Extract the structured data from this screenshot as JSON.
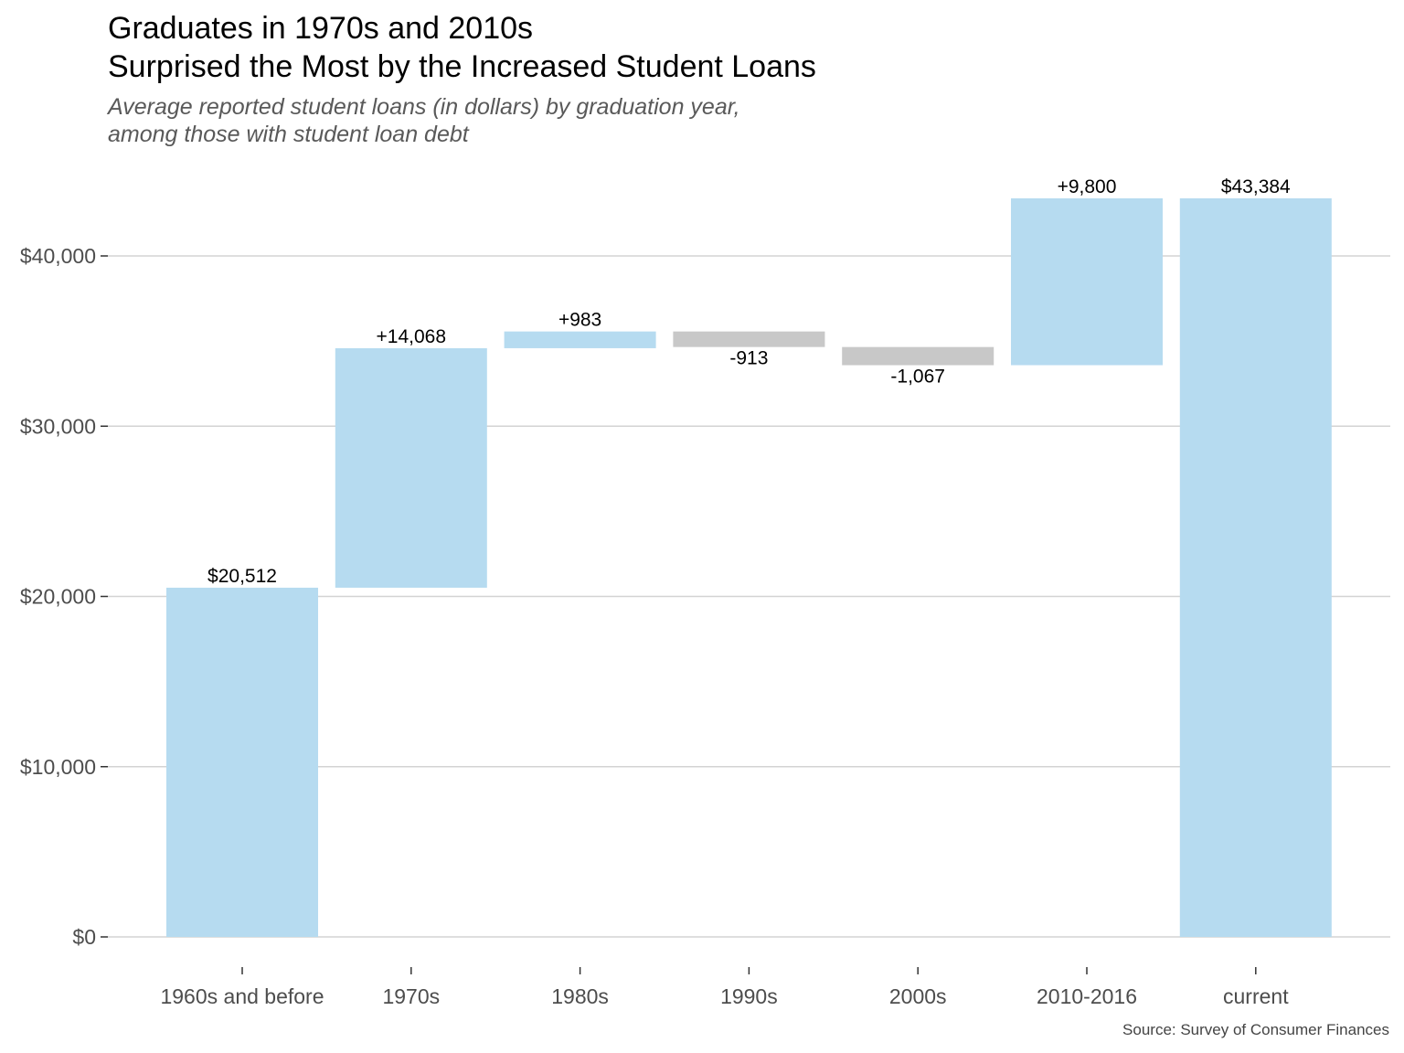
{
  "title": "Graduates in 1970s and 2010s\nSurprised the Most by the Increased Student Loans",
  "subtitle": "Average reported student loans (in dollars) by graduation year,\namong those with student loan debt",
  "caption": "Source: Survey of Consumer Finances",
  "colors": {
    "increase": "#b6dbf0",
    "decrease": "#c8c8c8",
    "total": "#b6dbf0",
    "grid": "#d3d3d3"
  },
  "chart_data": {
    "type": "bar",
    "subtype": "waterfall",
    "categories": [
      "1960s and before",
      "1970s",
      "1980s",
      "1990s",
      "2000s",
      "2010-2016",
      "current"
    ],
    "values": [
      20512,
      14068,
      983,
      -913,
      -1067,
      9800,
      43384
    ],
    "measure": [
      "absolute",
      "relative",
      "relative",
      "relative",
      "relative",
      "relative",
      "total"
    ],
    "data_labels": [
      "$20,512",
      "+14,068",
      "+983",
      "-913",
      "-1,067",
      "+9,800",
      "$43,384"
    ],
    "ylim": [
      0,
      43384
    ],
    "yticks": [
      0,
      10000,
      20000,
      30000,
      40000
    ],
    "ytick_labels": [
      "$0",
      "$10,000",
      "$20,000",
      "$30,000",
      "$40,000"
    ],
    "xlabel": "",
    "ylabel": "",
    "grid": "horizontal"
  }
}
